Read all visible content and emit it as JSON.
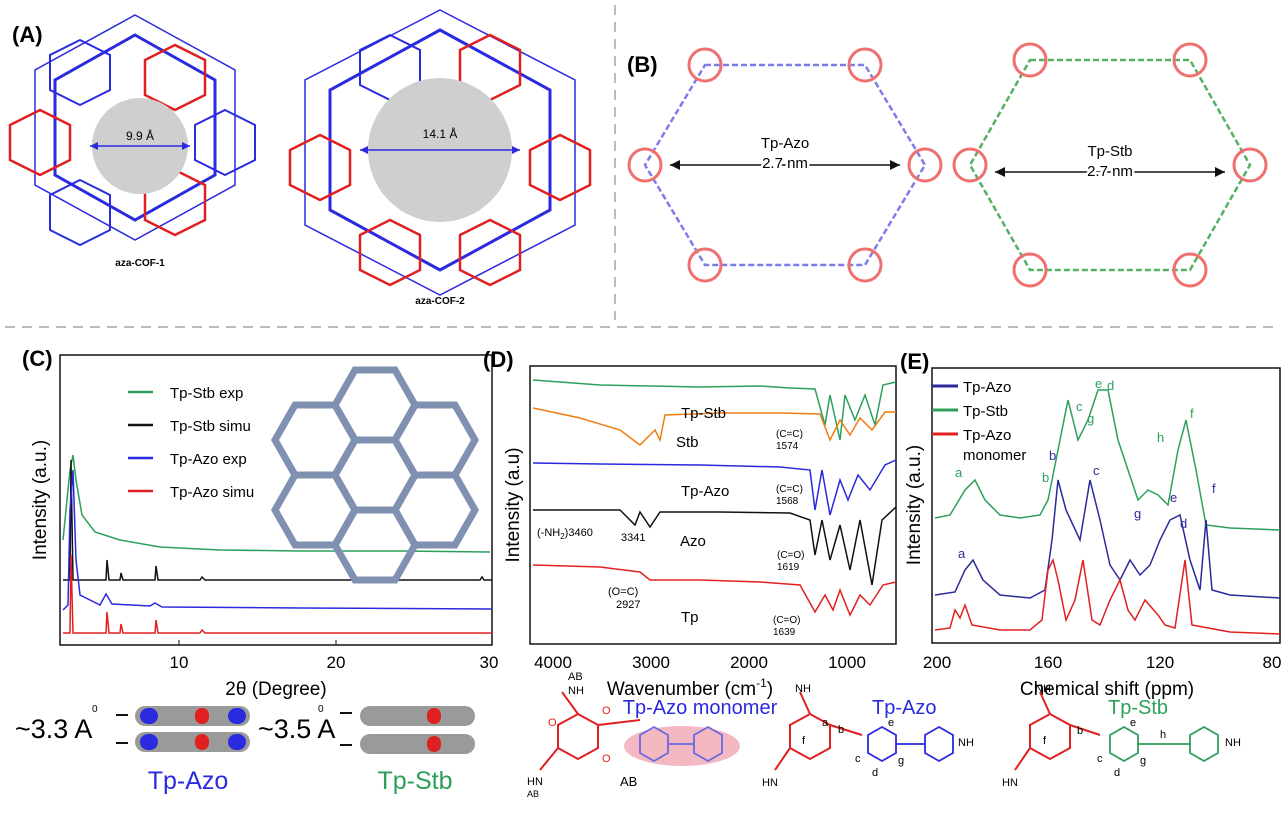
{
  "panels": {
    "A": {
      "letter": "(A)",
      "cof1_pore": "9.9 Å",
      "cof1_label": "aza-COF-1",
      "cof2_pore": "14.1 Å",
      "cof2_label": "aza-COF-2"
    },
    "B": {
      "letter": "(B)",
      "azo_name": "Tp-Azo",
      "azo_size": "2.7 nm",
      "stb_name": "Tp-Stb",
      "stb_size": "2.7 nm"
    },
    "C": {
      "letter": "(C)",
      "ylabel": "Intensity (a.u.)",
      "xlabel": "2θ (Degree)",
      "legend": [
        "Tp-Stb exp",
        "Tp-Stb simu",
        "Tp-Azo exp",
        "Tp-Azo simu"
      ],
      "xticks": [
        "10",
        "20",
        "30"
      ]
    },
    "D": {
      "letter": "(D)",
      "ylabel": "Intensity (a.u)",
      "xlabel": "Wavenumber (cm",
      "xlabel_sup": "-1",
      "xlabel_end": ")",
      "xticks": [
        "4000",
        "3000",
        "2000",
        "1000"
      ],
      "traces": [
        "Tp-Stb",
        "Stb",
        "Tp-Azo",
        "Azo",
        "Tp"
      ],
      "ann": {
        "cc1a": "(C=C)",
        "cc1b": "1574",
        "cc2a": "(C=C)",
        "cc2b": "1568",
        "nh": "(-NH",
        "nh_sub": "2",
        "nh_end": ")3460",
        "nh2": "3341",
        "co1a": "(C=O)",
        "co1b": "1619",
        "oc_a": "(O=C)",
        "oc_b": "2927",
        "co2a": "(C=O)",
        "co2b": "1639"
      }
    },
    "E": {
      "letter": "(E)",
      "ylabel": "Intensity (a.u.)",
      "xlabel": "Chemical shift (ppm)",
      "xticks": [
        "200",
        "160",
        "120",
        "80"
      ],
      "legend": [
        "Tp-Azo",
        "Tp-Stb",
        "Tp-Azo",
        "monomer"
      ],
      "peaks": [
        "a",
        "b",
        "c",
        "g",
        "e",
        "d",
        "h",
        "f",
        "a",
        "b",
        "c",
        "g",
        "e",
        "d",
        "f"
      ]
    }
  },
  "bottom": {
    "azo_spacing_sup": "0",
    "azo_spacing": "~3.3 A",
    "azo_name": "Tp-Azo",
    "stb_spacing_sup": "0",
    "stb_spacing": "~3.5 A",
    "stb_name": "Tp-Stb",
    "monomer_title": "Tp-Azo monomer",
    "monomer_ab": "AB",
    "monomer_nh": "NH",
    "monomer_hn": "HN",
    "monomer_ab2": "AB",
    "monomer_ab3": "AB",
    "azo_title": "Tp-Azo",
    "azo_letters": [
      "a",
      "b",
      "c",
      "d",
      "e",
      "f",
      "g"
    ],
    "azo_nh": "NH",
    "azo_hn": "HN",
    "azo_nh2": "NH",
    "stb_title": "Tp-Stb",
    "stb_letters": [
      "b",
      "c",
      "d",
      "e",
      "f",
      "g",
      "h"
    ],
    "stb_nh": "NH",
    "stb_hn": "HN",
    "stb_nh2": "NH"
  },
  "chart_data": [
    {
      "type": "line",
      "title": "",
      "xlabel": "2θ (Degree)",
      "ylabel": "Intensity (a.u.)",
      "xlim": [
        2.5,
        30
      ],
      "series": [
        {
          "name": "Tp-Stb exp",
          "color": "#2ca05a",
          "peaks": [
            3.4
          ]
        },
        {
          "name": "Tp-Stb simu",
          "color": "#111111",
          "peaks": [
            3.4,
            5.8,
            6.7,
            8.7,
            11.5,
            13.5,
            27.5
          ]
        },
        {
          "name": "Tp-Azo exp",
          "color": "#2a2adf",
          "peaks": [
            3.4,
            5.9,
            8.6
          ]
        },
        {
          "name": "Tp-Azo simu",
          "color": "#e02020",
          "peaks": [
            3.4,
            5.8,
            6.7,
            8.7,
            11.5,
            13.5
          ]
        }
      ]
    },
    {
      "type": "line",
      "title": "",
      "xlabel": "Wavenumber (cm-1)",
      "ylabel": "Intensity (a.u)",
      "xlim": [
        4000,
        500
      ],
      "series": [
        {
          "name": "Tp-Stb",
          "color": "#2ca05a"
        },
        {
          "name": "Stb",
          "color": "#ef7d11"
        },
        {
          "name": "Tp-Azo",
          "color": "#2a2adf"
        },
        {
          "name": "Azo",
          "color": "#111111"
        },
        {
          "name": "Tp",
          "color": "#e02020"
        }
      ]
    },
    {
      "type": "line",
      "title": "",
      "xlabel": "Chemical shift (ppm)",
      "ylabel": "Intensity (a.u.)",
      "xlim": [
        200,
        80
      ],
      "series": [
        {
          "name": "Tp-Azo",
          "color": "#2a2a9a"
        },
        {
          "name": "Tp-Stb",
          "color": "#2ca05a"
        },
        {
          "name": "Tp-Azo monomer",
          "color": "#e02020"
        }
      ]
    }
  ]
}
